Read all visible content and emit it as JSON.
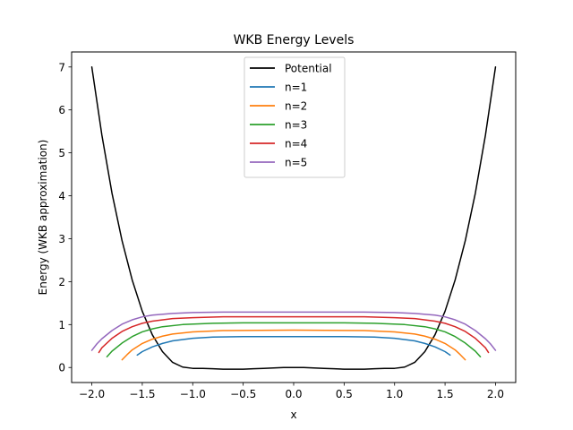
{
  "chart_data": {
    "type": "line",
    "title": "WKB Energy Levels",
    "xlabel": "x",
    "ylabel": "Energy (WKB approximation)",
    "xlim": [
      -2.2,
      2.2
    ],
    "ylim": [
      -0.35,
      7.35
    ],
    "xticks": [
      "-2.0",
      "-1.5",
      "-1.0",
      "-0.5",
      "0.0",
      "0.5",
      "1.0",
      "1.5",
      "2.0"
    ],
    "yticks": [
      "0",
      "1",
      "2",
      "3",
      "4",
      "5",
      "6",
      "7"
    ],
    "grid": false,
    "legend_position": "top-center",
    "series": [
      {
        "name": "Potential",
        "color": "#000000",
        "x": [
          -2.0,
          -1.9,
          -1.8,
          -1.7,
          -1.6,
          -1.5,
          -1.4,
          -1.3,
          -1.2,
          -1.1,
          -1.0,
          -0.9,
          -0.8,
          -0.7,
          -0.6,
          -0.5,
          -0.4,
          -0.3,
          -0.2,
          -0.1,
          0.0,
          0.1,
          0.2,
          0.3,
          0.4,
          0.5,
          0.6,
          0.7,
          0.8,
          0.9,
          1.0,
          1.1,
          1.2,
          1.3,
          1.4,
          1.5,
          1.6,
          1.7,
          1.8,
          1.9,
          2.0
        ],
        "y": [
          7.0,
          5.41,
          4.06,
          2.95,
          2.04,
          1.31,
          0.76,
          0.37,
          0.12,
          0.01,
          -0.02,
          -0.02,
          -0.03,
          -0.04,
          -0.04,
          -0.04,
          -0.03,
          -0.02,
          -0.01,
          0.0,
          0.0,
          0.0,
          -0.01,
          -0.02,
          -0.03,
          -0.04,
          -0.04,
          -0.04,
          -0.03,
          -0.02,
          -0.02,
          0.01,
          0.12,
          0.37,
          0.76,
          1.31,
          2.04,
          2.95,
          4.06,
          5.41,
          7.0
        ]
      },
      {
        "name": "n=1",
        "color": "#1f77b4",
        "x": [
          -1.55,
          -1.5,
          -1.4,
          -1.3,
          -1.2,
          -1.0,
          -0.8,
          -0.5,
          0.0,
          0.5,
          0.8,
          1.0,
          1.2,
          1.3,
          1.4,
          1.5,
          1.55
        ],
        "y": [
          0.29,
          0.37,
          0.48,
          0.56,
          0.62,
          0.68,
          0.71,
          0.72,
          0.72,
          0.72,
          0.71,
          0.68,
          0.62,
          0.56,
          0.48,
          0.37,
          0.29
        ]
      },
      {
        "name": "n=2",
        "color": "#ff7f0e",
        "x": [
          -1.7,
          -1.65,
          -1.6,
          -1.5,
          -1.4,
          -1.3,
          -1.2,
          -1.0,
          -0.7,
          0.0,
          0.7,
          1.0,
          1.2,
          1.3,
          1.4,
          1.5,
          1.6,
          1.65,
          1.7
        ],
        "y": [
          0.18,
          0.3,
          0.41,
          0.56,
          0.66,
          0.73,
          0.78,
          0.83,
          0.86,
          0.87,
          0.86,
          0.83,
          0.78,
          0.73,
          0.66,
          0.56,
          0.41,
          0.3,
          0.18
        ]
      },
      {
        "name": "n=3",
        "color": "#2ca02c",
        "x": [
          -1.85,
          -1.8,
          -1.7,
          -1.6,
          -1.5,
          -1.4,
          -1.3,
          -1.1,
          -0.8,
          -0.5,
          0.0,
          0.5,
          0.8,
          1.1,
          1.3,
          1.4,
          1.5,
          1.6,
          1.7,
          1.8,
          1.85
        ],
        "y": [
          0.25,
          0.38,
          0.57,
          0.72,
          0.83,
          0.9,
          0.95,
          1.0,
          1.03,
          1.04,
          1.04,
          1.04,
          1.03,
          1.0,
          0.95,
          0.9,
          0.83,
          0.72,
          0.57,
          0.38,
          0.25
        ]
      },
      {
        "name": "n=4",
        "color": "#d62728",
        "x": [
          -1.93,
          -1.9,
          -1.8,
          -1.7,
          -1.6,
          -1.5,
          -1.4,
          -1.2,
          -1.0,
          -0.7,
          0.0,
          0.7,
          1.0,
          1.2,
          1.4,
          1.5,
          1.6,
          1.7,
          1.8,
          1.9,
          1.93
        ],
        "y": [
          0.35,
          0.46,
          0.68,
          0.84,
          0.95,
          1.03,
          1.08,
          1.14,
          1.16,
          1.18,
          1.18,
          1.18,
          1.16,
          1.14,
          1.08,
          1.03,
          0.95,
          0.84,
          0.68,
          0.46,
          0.35
        ]
      },
      {
        "name": "n=5",
        "color": "#9467bd",
        "x": [
          -2.0,
          -1.95,
          -1.9,
          -1.8,
          -1.7,
          -1.6,
          -1.5,
          -1.4,
          -1.2,
          -1.0,
          -0.7,
          0.0,
          0.7,
          1.0,
          1.2,
          1.4,
          1.5,
          1.6,
          1.7,
          1.8,
          1.9,
          1.95,
          2.0
        ],
        "y": [
          0.4,
          0.55,
          0.67,
          0.86,
          1.01,
          1.11,
          1.18,
          1.22,
          1.26,
          1.28,
          1.29,
          1.29,
          1.29,
          1.28,
          1.26,
          1.22,
          1.18,
          1.11,
          1.01,
          0.86,
          0.67,
          0.55,
          0.4
        ]
      }
    ]
  }
}
